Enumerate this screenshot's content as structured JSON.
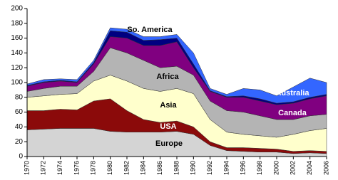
{
  "chart_data": {
    "type": "stacked-area",
    "x": [
      1970,
      1972,
      1974,
      1976,
      1978,
      1980,
      1982,
      1984,
      1986,
      1988,
      1990,
      1992,
      1994,
      1996,
      1998,
      2000,
      2002,
      2004,
      2006
    ],
    "xlim": [
      1970,
      2006
    ],
    "xticks": [
      1970,
      1972,
      1974,
      1976,
      1978,
      1980,
      1982,
      1984,
      1986,
      1988,
      1990,
      1992,
      1994,
      1996,
      1998,
      2000,
      2002,
      2004,
      2006
    ],
    "ylim": [
      0,
      200
    ],
    "yticks": [
      0,
      20,
      40,
      60,
      80,
      100,
      120,
      140,
      160,
      180,
      200
    ],
    "series": [
      {
        "name": "Europe",
        "color": "#d4d4d4",
        "values": [
          36,
          37,
          38,
          38,
          38,
          34,
          33,
          33,
          33,
          34,
          30,
          15,
          8,
          7,
          6,
          6,
          4,
          5,
          4
        ]
      },
      {
        "name": "USA",
        "color": "#8b0a0a",
        "values": [
          26,
          25,
          26,
          25,
          37,
          44,
          29,
          17,
          13,
          14,
          10,
          5,
          4,
          5,
          5,
          4,
          3,
          3,
          3
        ]
      },
      {
        "name": "Asia",
        "color": "#ffffcc",
        "values": [
          18,
          20,
          20,
          22,
          27,
          32,
          40,
          42,
          42,
          44,
          45,
          30,
          21,
          18,
          17,
          16,
          23,
          27,
          31
        ]
      },
      {
        "name": "Africa",
        "color": "#b4b4b4",
        "values": [
          8,
          10,
          11,
          10,
          13,
          37,
          38,
          38,
          32,
          30,
          25,
          25,
          29,
          30,
          27,
          24,
          20,
          20,
          19
        ]
      },
      {
        "name": "Canada",
        "color": "#800080",
        "values": [
          7,
          8,
          7,
          5,
          10,
          15,
          20,
          20,
          30,
          33,
          10,
          13,
          18,
          20,
          20,
          20,
          22,
          23,
          25
        ]
      },
      {
        "name": "So. America",
        "color": "#000080",
        "values": [
          1,
          1,
          1,
          1,
          2,
          8,
          8,
          7,
          8,
          5,
          5,
          1,
          1,
          2,
          3,
          2,
          2,
          2,
          2
        ]
      },
      {
        "name": "Australia",
        "color": "#3366ff",
        "values": [
          2,
          3,
          2,
          3,
          3,
          4,
          4,
          5,
          4,
          5,
          15,
          3,
          3,
          10,
          12,
          10,
          20,
          26,
          16
        ]
      }
    ]
  }
}
